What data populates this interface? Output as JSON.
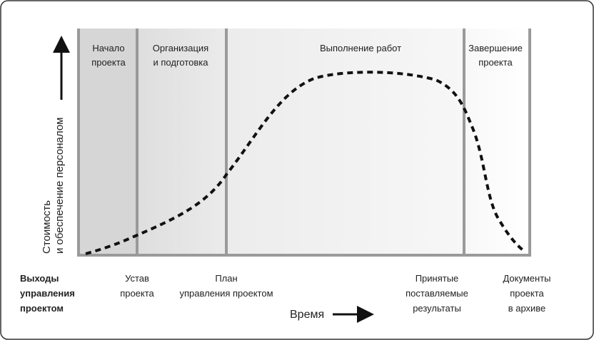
{
  "y_axis_label": {
    "lines": [
      "Стоимость",
      "и обеспечение персоналом"
    ]
  },
  "x_axis_label": "Время",
  "phases": [
    {
      "lines": [
        "Начало",
        "проекта"
      ]
    },
    {
      "lines": [
        "Организация",
        "и подготовка"
      ]
    },
    {
      "lines": [
        "Выполнение работ"
      ]
    },
    {
      "lines": [
        "Завершение",
        "проекта"
      ]
    }
  ],
  "outputs_label": {
    "lines": [
      "Выходы",
      "управления",
      "проектом"
    ]
  },
  "outputs": [
    {
      "lines": [
        "Устав",
        "проекта"
      ]
    },
    {
      "lines": [
        "План",
        "управления проектом"
      ]
    },
    {
      "lines": [
        "Принятые",
        "поставляемые",
        "результаты"
      ]
    },
    {
      "lines": [
        "Документы",
        "проекта",
        "в архиве"
      ]
    }
  ]
}
